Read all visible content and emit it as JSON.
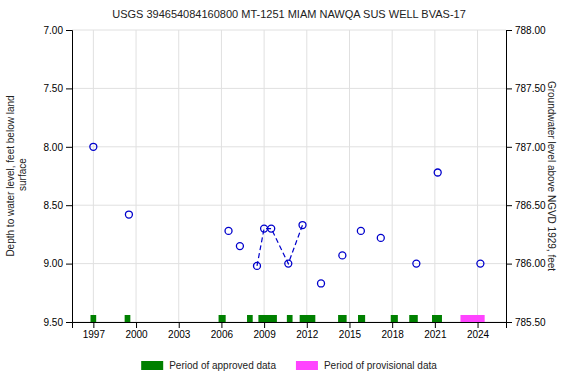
{
  "chart_data": {
    "type": "scatter",
    "title": "USGS 394654084160800 MT-1251 MIAM NAWQA SUS WELL BVAS-17",
    "ylabel": "Depth to water level, feet below land\n surface",
    "y2label": "Groundwater level above NGVD 1929, feet",
    "xlim": [
      1995.5,
      2026.0
    ],
    "ylim": [
      9.5,
      7.0
    ],
    "y2lim": [
      785.5,
      788.0
    ],
    "xticks": [
      1997,
      2000,
      2003,
      2006,
      2009,
      2012,
      2015,
      2018,
      2021,
      2024
    ],
    "yticks": [
      {
        "value": 7.0,
        "label": "7.00"
      },
      {
        "value": 7.5,
        "label": "7.50"
      },
      {
        "value": 8.0,
        "label": "8.00"
      },
      {
        "value": 8.5,
        "label": "8.50"
      },
      {
        "value": 9.0,
        "label": "9.00"
      },
      {
        "value": 9.5,
        "label": "9.50"
      }
    ],
    "y2ticks": [
      {
        "value": 785.5,
        "label": "785.50"
      },
      {
        "value": 786.0,
        "label": "786.00"
      },
      {
        "value": 786.5,
        "label": "786.50"
      },
      {
        "value": 787.0,
        "label": "787.00"
      },
      {
        "value": 787.5,
        "label": "787.50"
      },
      {
        "value": 788.0,
        "label": "788.00"
      }
    ],
    "grid": true,
    "legend": "bottom",
    "series": [
      {
        "type": "span",
        "name": "Period of approved data",
        "color": "#008000",
        "y_range": [
          9.44,
          9.5
        ],
        "segments": [
          [
            1996.8,
            1997.2
          ],
          [
            1999.2,
            1999.6
          ],
          [
            2005.8,
            2006.3
          ],
          [
            2007.8,
            2008.2
          ],
          [
            2008.6,
            2009.9
          ],
          [
            2010.6,
            2011.0
          ],
          [
            2011.5,
            2012.6
          ],
          [
            2014.2,
            2014.8
          ],
          [
            2015.6,
            2016.1
          ],
          [
            2017.9,
            2018.4
          ],
          [
            2019.2,
            2019.8
          ],
          [
            2020.8,
            2021.5
          ]
        ]
      },
      {
        "type": "span",
        "name": "Period of provisional data",
        "color": "#FF44FF",
        "y_range": [
          9.44,
          9.5
        ],
        "segments": [
          [
            2022.8,
            2024.5
          ]
        ]
      },
      {
        "type": "line",
        "line_style": "dashed",
        "color": "#0000cc",
        "x": [
          2008.5,
          2009.0,
          2009.5,
          2010.7,
          2011.7
        ],
        "values": [
          9.02,
          8.7,
          8.7,
          9.0,
          8.67
        ]
      },
      {
        "type": "scatter",
        "marker": "circle",
        "color": "#0000cc",
        "x": [
          1997.0,
          1999.5,
          2006.5,
          2007.3,
          2008.5,
          2009.0,
          2009.5,
          2010.7,
          2011.7,
          2013.0,
          2014.5,
          2015.8,
          2017.2,
          2019.7,
          2021.2,
          2024.2
        ],
        "values": [
          8.0,
          8.58,
          8.72,
          8.85,
          9.02,
          8.7,
          8.7,
          9.0,
          8.67,
          9.17,
          8.93,
          8.72,
          8.78,
          9.0,
          8.22,
          9.0
        ]
      }
    ]
  }
}
